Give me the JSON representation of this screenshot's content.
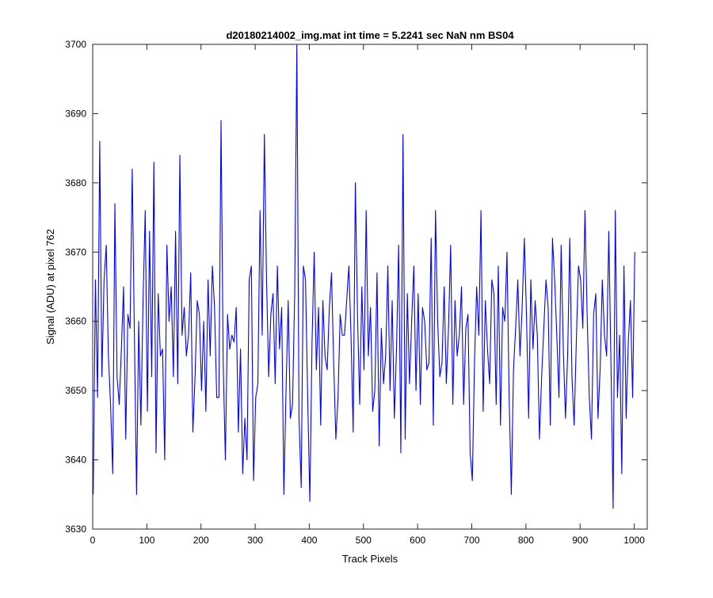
{
  "chart_data": {
    "type": "line",
    "title": "d20180214002_img.mat int time = 5.2241 sec  NaN nm BS04",
    "xlabel": "Track Pixels",
    "ylabel": "Signal (ADU) at pixel 762",
    "xlim": [
      0,
      1024
    ],
    "ylim": [
      3630,
      3700
    ],
    "xticks": [
      0,
      100,
      200,
      300,
      400,
      500,
      600,
      700,
      800,
      900,
      1000
    ],
    "yticks": [
      3630,
      3640,
      3650,
      3660,
      3670,
      3680,
      3690,
      3700
    ],
    "grid": false,
    "legend": "none",
    "series_color": "#0000ff",
    "series": [
      {
        "x_start": 1,
        "x_step": 4,
        "values": [
          3635,
          3666,
          3649,
          3686,
          3652,
          3666,
          3671,
          3655,
          3648,
          3638,
          3677,
          3652,
          3648,
          3656,
          3665,
          3643,
          3661,
          3659,
          3682,
          3658,
          3635,
          3660,
          3645,
          3663,
          3676,
          3647,
          3673,
          3652,
          3683,
          3641,
          3664,
          3655,
          3656,
          3640,
          3671,
          3660,
          3665,
          3652,
          3673,
          3651,
          3684,
          3658,
          3662,
          3655,
          3658,
          3667,
          3644,
          3652,
          3663,
          3661,
          3650,
          3660,
          3647,
          3666,
          3655,
          3668,
          3662,
          3649,
          3649,
          3689,
          3654,
          3640,
          3661,
          3656,
          3658,
          3657,
          3662,
          3644,
          3656,
          3638,
          3646,
          3640,
          3666,
          3668,
          3637,
          3649,
          3651,
          3676,
          3658,
          3687,
          3666,
          3652,
          3661,
          3664,
          3651,
          3668,
          3656,
          3662,
          3635,
          3650,
          3663,
          3646,
          3648,
          3664,
          3700,
          3646,
          3636,
          3668,
          3666,
          3649,
          3634,
          3657,
          3670,
          3653,
          3662,
          3645,
          3663,
          3655,
          3653,
          3662,
          3667,
          3654,
          3643,
          3649,
          3661,
          3658,
          3658,
          3663,
          3668,
          3658,
          3644,
          3680,
          3661,
          3648,
          3665,
          3653,
          3676,
          3655,
          3662,
          3647,
          3650,
          3667,
          3642,
          3659,
          3651,
          3655,
          3668,
          3650,
          3663,
          3646,
          3656,
          3671,
          3641,
          3687,
          3643,
          3664,
          3651,
          3660,
          3668,
          3650,
          3664,
          3648,
          3662,
          3660,
          3653,
          3654,
          3672,
          3645,
          3676,
          3660,
          3652,
          3654,
          3665,
          3651,
          3659,
          3671,
          3648,
          3663,
          3655,
          3658,
          3665,
          3648,
          3659,
          3661,
          3641,
          3637,
          3654,
          3665,
          3658,
          3676,
          3647,
          3663,
          3656,
          3651,
          3666,
          3664,
          3648,
          3668,
          3645,
          3662,
          3660,
          3670,
          3649,
          3635,
          3653,
          3659,
          3666,
          3655,
          3662,
          3672,
          3661,
          3646,
          3666,
          3656,
          3663,
          3658,
          3643,
          3652,
          3659,
          3666,
          3662,
          3645,
          3672,
          3666,
          3658,
          3649,
          3671,
          3656,
          3646,
          3655,
          3672,
          3652,
          3645,
          3657,
          3668,
          3666,
          3659,
          3676,
          3661,
          3649,
          3643,
          3661,
          3664,
          3646,
          3653,
          3666,
          3658,
          3655,
          3673,
          3654,
          3633,
          3676,
          3649,
          3658,
          3638,
          3668,
          3646,
          3657,
          3663,
          3649,
          3670
        ]
      }
    ]
  }
}
